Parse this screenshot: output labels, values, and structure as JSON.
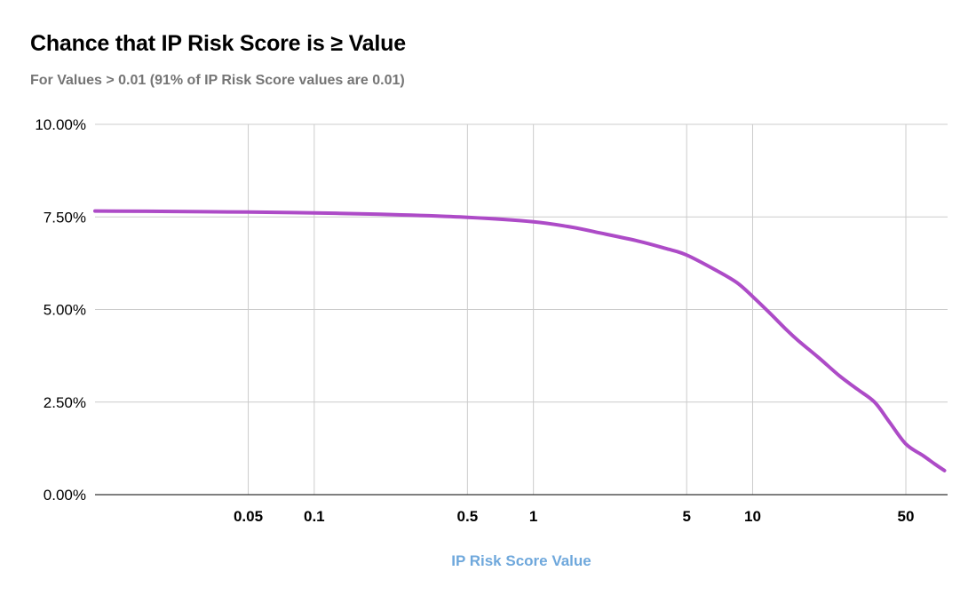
{
  "chart_data": {
    "type": "line",
    "title": "Chance that IP Risk Score is ≥ Value",
    "subtitle": "For Values > 0.01 (91% of IP Risk Score values are 0.01)",
    "xlabel": "IP Risk Score Value",
    "ylabel": "",
    "x_scale": "log10",
    "xlim": [
      0.01,
      77.5
    ],
    "ylim": [
      0,
      10
    ],
    "grid": true,
    "legend_position": "none",
    "x_ticks": [
      {
        "value": 0.05,
        "label": "0.05"
      },
      {
        "value": 0.1,
        "label": "0.1"
      },
      {
        "value": 0.5,
        "label": "0.5"
      },
      {
        "value": 1,
        "label": "1"
      },
      {
        "value": 5,
        "label": "5"
      },
      {
        "value": 10,
        "label": "10"
      },
      {
        "value": 50,
        "label": "50"
      }
    ],
    "y_ticks": [
      {
        "value": 0,
        "label": "0.00%"
      },
      {
        "value": 2.5,
        "label": "2.50%"
      },
      {
        "value": 5,
        "label": "5.00%"
      },
      {
        "value": 7.5,
        "label": "7.50%"
      },
      {
        "value": 10,
        "label": "10.00%"
      }
    ],
    "series": [
      {
        "name": "Chance that IP Risk Score is ≥ Value (%)",
        "color": "#ad4bc7",
        "points": [
          [
            0.01,
            7.66
          ],
          [
            0.02,
            7.65
          ],
          [
            0.05,
            7.63
          ],
          [
            0.1,
            7.61
          ],
          [
            0.2,
            7.57
          ],
          [
            0.5,
            7.49
          ],
          [
            1,
            7.37
          ],
          [
            1.5,
            7.22
          ],
          [
            2,
            7.07
          ],
          [
            3,
            6.85
          ],
          [
            4,
            6.65
          ],
          [
            5,
            6.47
          ],
          [
            7,
            6.02
          ],
          [
            8.5,
            5.72
          ],
          [
            10,
            5.35
          ],
          [
            12,
            4.9
          ],
          [
            14,
            4.5
          ],
          [
            16,
            4.18
          ],
          [
            20,
            3.7
          ],
          [
            25,
            3.2
          ],
          [
            30,
            2.85
          ],
          [
            36,
            2.5
          ],
          [
            42,
            1.97
          ],
          [
            50,
            1.37
          ],
          [
            60,
            1.05
          ],
          [
            68,
            0.82
          ],
          [
            75,
            0.65
          ]
        ]
      }
    ],
    "colors": {
      "line": "#ad4bc7",
      "grid": "#cccccc",
      "axis_line": "#333333",
      "tick_label": "#000000",
      "x_axis_title": "#6fa8dc",
      "title": "#000000",
      "subtitle": "#757575",
      "background": "#ffffff"
    }
  }
}
